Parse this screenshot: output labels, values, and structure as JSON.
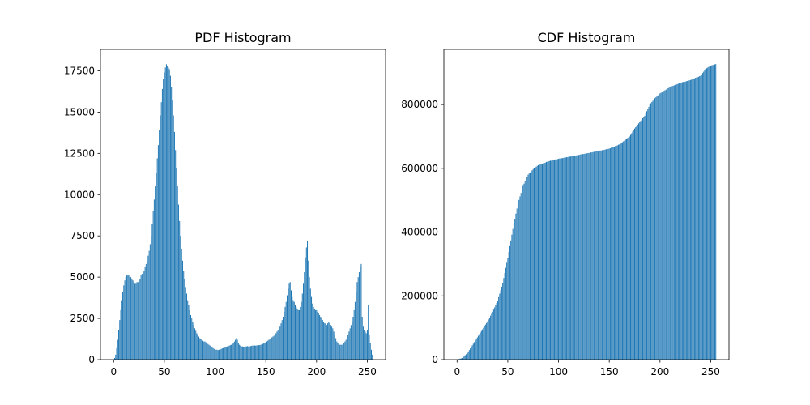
{
  "chart_data": [
    {
      "type": "bar",
      "title": "PDF Histogram",
      "color": "#1f77b4",
      "x": [
        0,
        1,
        2,
        3,
        4,
        5,
        6,
        7,
        8,
        9,
        10,
        11,
        12,
        13,
        14,
        15,
        16,
        17,
        18,
        19,
        20,
        21,
        22,
        23,
        24,
        25,
        26,
        27,
        28,
        29,
        30,
        31,
        32,
        33,
        34,
        35,
        36,
        37,
        38,
        39,
        40,
        41,
        42,
        43,
        44,
        45,
        46,
        47,
        48,
        49,
        50,
        51,
        52,
        53,
        54,
        55,
        56,
        57,
        58,
        59,
        60,
        61,
        62,
        63,
        64,
        65,
        66,
        67,
        68,
        69,
        70,
        71,
        72,
        73,
        74,
        75,
        76,
        77,
        78,
        79,
        80,
        81,
        82,
        83,
        84,
        85,
        86,
        87,
        88,
        89,
        90,
        91,
        92,
        93,
        94,
        95,
        96,
        97,
        98,
        99,
        100,
        101,
        102,
        103,
        104,
        105,
        106,
        107,
        108,
        109,
        110,
        111,
        112,
        113,
        114,
        115,
        116,
        117,
        118,
        119,
        120,
        121,
        122,
        123,
        124,
        125,
        126,
        127,
        128,
        129,
        130,
        131,
        132,
        133,
        134,
        135,
        136,
        137,
        138,
        139,
        140,
        141,
        142,
        143,
        144,
        145,
        146,
        147,
        148,
        149,
        150,
        151,
        152,
        153,
        154,
        155,
        156,
        157,
        158,
        159,
        160,
        161,
        162,
        163,
        164,
        165,
        166,
        167,
        168,
        169,
        170,
        171,
        172,
        173,
        174,
        175,
        176,
        177,
        178,
        179,
        180,
        181,
        182,
        183,
        184,
        185,
        186,
        187,
        188,
        189,
        190,
        191,
        192,
        193,
        194,
        195,
        196,
        197,
        198,
        199,
        200,
        201,
        202,
        203,
        204,
        205,
        206,
        207,
        208,
        209,
        210,
        211,
        212,
        213,
        214,
        215,
        216,
        217,
        218,
        219,
        220,
        221,
        222,
        223,
        224,
        225,
        226,
        227,
        228,
        229,
        230,
        231,
        232,
        233,
        234,
        235,
        236,
        237,
        238,
        239,
        240,
        241,
        242,
        243,
        244,
        245,
        246,
        247,
        248,
        249,
        250,
        251,
        252,
        253,
        254,
        255
      ],
      "values": [
        0,
        100,
        300,
        700,
        1200,
        1800,
        2400,
        3000,
        3600,
        4100,
        4500,
        4800,
        5000,
        5100,
        5100,
        5100,
        5000,
        5000,
        4900,
        4800,
        4700,
        4600,
        4600,
        4700,
        4700,
        4800,
        4900,
        5100,
        5200,
        5300,
        5400,
        5600,
        5800,
        6000,
        6300,
        6600,
        7000,
        7500,
        8200,
        9000,
        9700,
        10500,
        11300,
        12200,
        13000,
        13900,
        14800,
        15600,
        16400,
        17000,
        17400,
        17700,
        17900,
        17800,
        17700,
        17600,
        17200,
        16500,
        15700,
        14800,
        13800,
        12700,
        11600,
        10500,
        9400,
        8400,
        7500,
        6700,
        6000,
        5400,
        4900,
        4400,
        4000,
        3600,
        3300,
        3000,
        2700,
        2500,
        2300,
        2100,
        1900,
        1750,
        1600,
        1500,
        1400,
        1300,
        1250,
        1200,
        1150,
        1100,
        1100,
        1050,
        1000,
        950,
        900,
        850,
        800,
        750,
        700,
        650,
        600,
        600,
        600,
        580,
        600,
        620,
        650,
        680,
        700,
        720,
        750,
        780,
        800,
        820,
        850,
        880,
        900,
        950,
        1000,
        1100,
        1200,
        1300,
        1200,
        1000,
        900,
        850,
        800,
        800,
        780,
        780,
        800,
        800,
        820,
        800,
        800,
        820,
        840,
        850,
        850,
        860,
        850,
        860,
        870,
        880,
        880,
        900,
        920,
        950,
        980,
        1000,
        1050,
        1100,
        1150,
        1200,
        1250,
        1300,
        1350,
        1400,
        1450,
        1500,
        1600,
        1700,
        1800,
        1900,
        2000,
        2200,
        2400,
        2600,
        2900,
        3200,
        3500,
        3900,
        4300,
        4600,
        4700,
        4200,
        3800,
        3600,
        3500,
        3300,
        3200,
        3100,
        3000,
        3000,
        3200,
        3500,
        4000,
        4600,
        5300,
        6200,
        6800,
        7200,
        6000,
        5000,
        4300,
        3800,
        3400,
        3200,
        3100,
        3000,
        3000,
        2900,
        2800,
        2700,
        2600,
        2500,
        2400,
        2300,
        2200,
        2200,
        2100,
        2200,
        2300,
        2200,
        2100,
        2000,
        1900,
        1700,
        1500,
        1300,
        1100,
        1000,
        950,
        900,
        900,
        900,
        950,
        1000,
        1100,
        1200,
        1300,
        1500,
        1700,
        1900,
        2100,
        2300,
        2600,
        3000,
        3500,
        4100,
        4700,
        5000,
        5300,
        5600,
        5800,
        2600,
        2000,
        1800,
        1700,
        1600,
        1800,
        3300,
        1500,
        1000,
        600,
        300
      ],
      "xlim": [
        -13,
        268
      ],
      "xticks": [
        0,
        50,
        100,
        150,
        200,
        250
      ],
      "ylim": [
        0,
        18800
      ],
      "yticks": [
        0,
        2500,
        5000,
        7500,
        10000,
        12500,
        15000,
        17500
      ]
    },
    {
      "type": "bar",
      "title": "CDF Histogram",
      "color": "#1f77b4",
      "x": [
        0,
        1,
        2,
        3,
        4,
        5,
        6,
        7,
        8,
        9,
        10,
        11,
        12,
        13,
        14,
        15,
        16,
        17,
        18,
        19,
        20,
        21,
        22,
        23,
        24,
        25,
        26,
        27,
        28,
        29,
        30,
        31,
        32,
        33,
        34,
        35,
        36,
        37,
        38,
        39,
        40,
        41,
        42,
        43,
        44,
        45,
        46,
        47,
        48,
        49,
        50,
        51,
        52,
        53,
        54,
        55,
        56,
        57,
        58,
        59,
        60,
        61,
        62,
        63,
        64,
        65,
        66,
        67,
        68,
        69,
        70,
        71,
        72,
        73,
        74,
        75,
        76,
        77,
        78,
        79,
        80,
        81,
        82,
        83,
        84,
        85,
        86,
        87,
        88,
        89,
        90,
        91,
        92,
        93,
        94,
        95,
        96,
        97,
        98,
        99,
        100,
        101,
        102,
        103,
        104,
        105,
        106,
        107,
        108,
        109,
        110,
        111,
        112,
        113,
        114,
        115,
        116,
        117,
        118,
        119,
        120,
        121,
        122,
        123,
        124,
        125,
        126,
        127,
        128,
        129,
        130,
        131,
        132,
        133,
        134,
        135,
        136,
        137,
        138,
        139,
        140,
        141,
        142,
        143,
        144,
        145,
        146,
        147,
        148,
        149,
        150,
        151,
        152,
        153,
        154,
        155,
        156,
        157,
        158,
        159,
        160,
        161,
        162,
        163,
        164,
        165,
        166,
        167,
        168,
        169,
        170,
        171,
        172,
        173,
        174,
        175,
        176,
        177,
        178,
        179,
        180,
        181,
        182,
        183,
        184,
        185,
        186,
        187,
        188,
        189,
        190,
        191,
        192,
        193,
        194,
        195,
        196,
        197,
        198,
        199,
        200,
        201,
        202,
        203,
        204,
        205,
        206,
        207,
        208,
        209,
        210,
        211,
        212,
        213,
        214,
        215,
        216,
        217,
        218,
        219,
        220,
        221,
        222,
        223,
        224,
        225,
        226,
        227,
        228,
        229,
        230,
        231,
        232,
        233,
        234,
        235,
        236,
        237,
        238,
        239,
        240,
        241,
        242,
        243,
        244,
        245,
        246,
        247,
        248,
        249,
        250,
        251,
        252,
        253,
        254,
        255
      ],
      "values": [
        0,
        1000,
        2000,
        3000,
        4000,
        5000,
        8000,
        11000,
        14000,
        17000,
        20000,
        25000,
        30000,
        35000,
        40000,
        45000,
        50000,
        55000,
        60000,
        65000,
        70000,
        75000,
        80000,
        85000,
        90000,
        95000,
        100000,
        105000,
        110000,
        115000,
        120000,
        126000,
        132000,
        138000,
        144000,
        150000,
        157000,
        164000,
        171000,
        178000,
        185000,
        196000,
        207000,
        218000,
        229000,
        240000,
        256000,
        272000,
        288000,
        304000,
        320000,
        338000,
        356000,
        374000,
        392000,
        410000,
        426000,
        442000,
        458000,
        474000,
        490000,
        501000,
        512000,
        523000,
        534000,
        545000,
        552000,
        559000,
        566000,
        573000,
        580000,
        584000,
        587000,
        591000,
        594000,
        598000,
        600000,
        603000,
        605000,
        608000,
        610000,
        611000,
        612000,
        614000,
        615000,
        616000,
        617000,
        618000,
        620000,
        621000,
        622000,
        623000,
        624000,
        624000,
        625000,
        626000,
        627000,
        628000,
        628000,
        629000,
        630000,
        631000,
        631000,
        632000,
        632000,
        633000,
        634000,
        634000,
        635000,
        635000,
        636000,
        637000,
        637000,
        638000,
        638000,
        639000,
        640000,
        640000,
        641000,
        641000,
        642000,
        643000,
        644000,
        644000,
        645000,
        645000,
        646000,
        647000,
        647000,
        648000,
        648000,
        649000,
        650000,
        650000,
        651000,
        652000,
        652000,
        653000,
        654000,
        654000,
        655000,
        656000,
        656000,
        657000,
        658000,
        658000,
        659000,
        660000,
        660000,
        661000,
        662000,
        663000,
        665000,
        666000,
        667000,
        668000,
        670000,
        671000,
        672000,
        674000,
        675000,
        677000,
        680000,
        682000,
        685000,
        687000,
        690000,
        692000,
        695000,
        697000,
        700000,
        705000,
        710000,
        715000,
        720000,
        725000,
        729000,
        733000,
        737000,
        741000,
        745000,
        749000,
        753000,
        757000,
        761000,
        765000,
        772000,
        779000,
        786000,
        793000,
        800000,
        804000,
        808000,
        812000,
        816000,
        820000,
        823000,
        826000,
        829000,
        832000,
        835000,
        837000,
        839000,
        841000,
        843000,
        845000,
        847000,
        849000,
        851000,
        853000,
        855000,
        856000,
        858000,
        859000,
        860000,
        862000,
        863000,
        864000,
        865000,
        867000,
        868000,
        869000,
        870000,
        871000,
        871000,
        872000,
        873000,
        874000,
        875000,
        876000,
        877000,
        878000,
        880000,
        881000,
        882000,
        884000,
        885000,
        886000,
        887000,
        889000,
        890000,
        894000,
        899000,
        903000,
        908000,
        912000,
        914000,
        916000,
        918000,
        920000,
        922000,
        923000,
        924000,
        925000,
        926000,
        927000
      ],
      "xlim": [
        -13,
        268
      ],
      "xticks": [
        0,
        50,
        100,
        150,
        200,
        250
      ],
      "ylim": [
        0,
        973000
      ],
      "yticks": [
        0,
        200000,
        400000,
        600000,
        800000
      ]
    }
  ]
}
